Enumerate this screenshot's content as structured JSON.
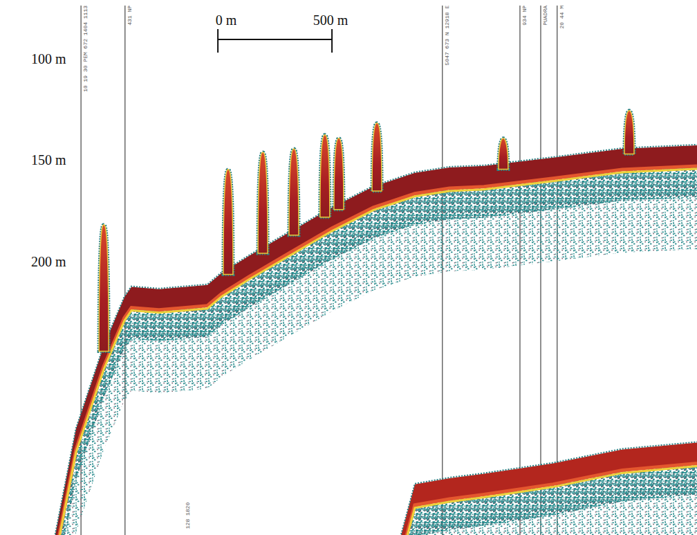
{
  "chart_data": {
    "type": "echogram",
    "xlim": [
      0,
      3055
    ],
    "ylim": [
      71,
      335
    ],
    "yticks": [
      {
        "value": 100,
        "label": "100 m"
      },
      {
        "value": 150,
        "label": "150 m"
      },
      {
        "value": 200,
        "label": "200 m"
      }
    ],
    "tick_labels": "y",
    "scale_bar": {
      "start": 955,
      "length": 500,
      "labels": [
        "0 m",
        "500 m"
      ]
    },
    "series": [
      {
        "type": "area",
        "color": "#8e1b1e",
        "x": [
          242,
          333,
          455,
          545,
          576,
          697,
          909,
          970,
          1091,
          1273,
          1455,
          1636,
          1818,
          1970,
          2121,
          2424,
          2727,
          3055
        ],
        "values": [
          335,
          282.6,
          241.6,
          217.7,
          212.6,
          213.7,
          211.6,
          205.8,
          197.3,
          185.3,
          173.4,
          163.1,
          156.3,
          153.6,
          152.9,
          148.8,
          144.4,
          142.7
        ]
      },
      {
        "type": "area",
        "color": "#b3261e",
        "x": [
          1758,
          1818,
          1970,
          2121,
          2424,
          2727,
          3055
        ],
        "values": [
          335,
          310,
          307,
          304.8,
          299.7,
          292.8,
          289.4
        ]
      },
      {
        "type": "plume",
        "color": "#c8402a",
        "x": [
          455,
          1000,
          1152,
          1288,
          1424,
          1485,
          1652,
          2206,
          2758
        ],
        "values": [
          181.9,
          154.6,
          146.1,
          144.4,
          137.5,
          139.2,
          131.7,
          139.2,
          125.6
        ]
      }
    ],
    "events": [
      {
        "x": 355,
        "label": "10 19 30 PEM 672 1404 1113"
      },
      {
        "x": 548,
        "label": "431 NP"
      },
      {
        "x": 1939,
        "label": "5047 673 N 12918 E"
      },
      {
        "x": 2279,
        "label": "934 NP"
      },
      {
        "x": 2370,
        "label": "PUADRA"
      },
      {
        "x": 2442,
        "label": "20 44 M"
      }
    ],
    "annotations": [
      {
        "x": 818,
        "depth": 332,
        "label": "128 1820"
      }
    ]
  }
}
